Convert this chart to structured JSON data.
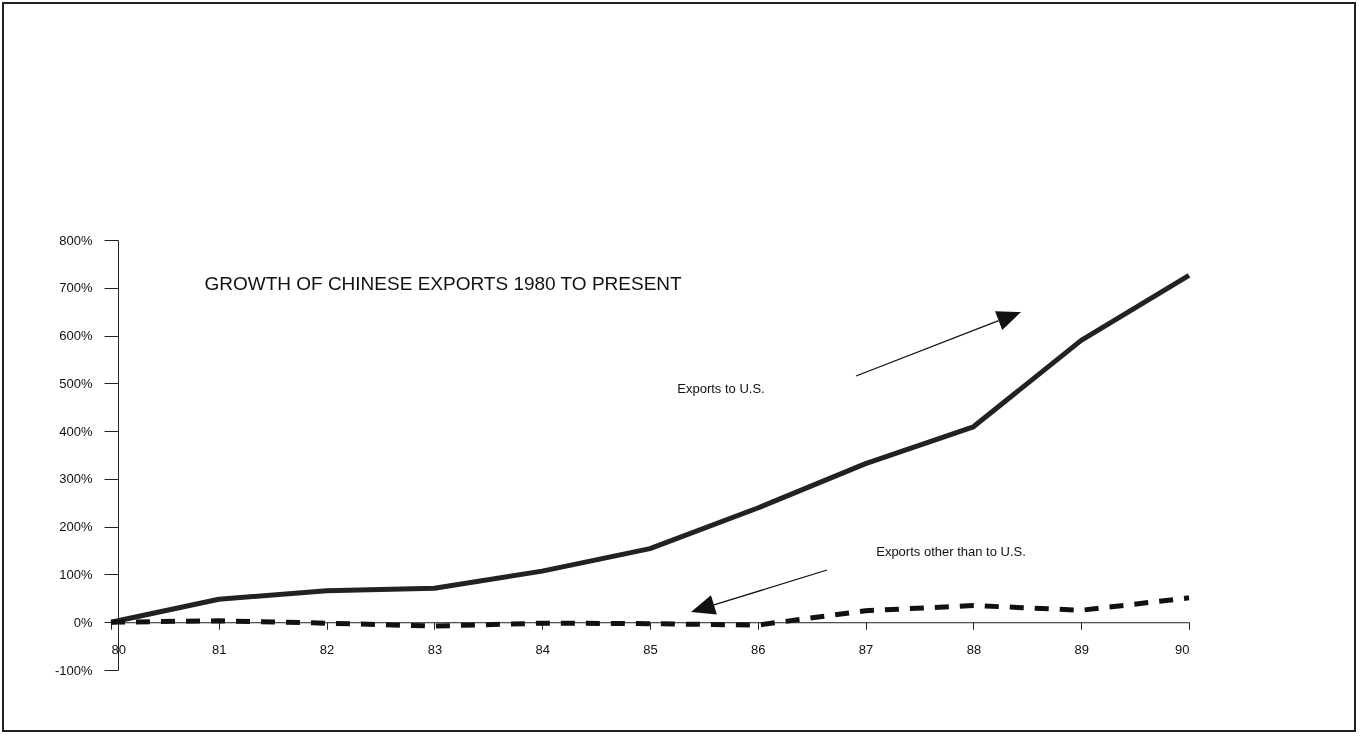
{
  "chart_data": {
    "type": "line",
    "title": "GROWTH OF CHINESE EXPORTS 1980 TO PRESENT",
    "x": [
      80,
      81,
      82,
      83,
      84,
      85,
      86,
      87,
      88,
      89,
      90
    ],
    "series": [
      {
        "color": "#222222",
        "line_style": "solid",
        "values": [
          0,
          48,
          66,
          71,
          107,
          154,
          239,
          332,
          409,
          590,
          726
        ]
      },
      {
        "color": "#111111",
        "line_style": "dashed",
        "values": [
          0,
          3,
          -2,
          -8,
          -2,
          -3,
          -6,
          24,
          35,
          25,
          51
        ]
      }
    ],
    "xlim": [
      80,
      90
    ],
    "xticks": [
      80,
      81,
      82,
      83,
      84,
      85,
      86,
      87,
      88,
      89,
      90
    ],
    "ylim": [
      -100,
      800
    ],
    "yticks": [
      {
        "value": -100,
        "label": "-100%"
      },
      {
        "value": 0,
        "label": "0%"
      },
      {
        "value": 100,
        "label": "100%"
      },
      {
        "value": 200,
        "label": "200%"
      },
      {
        "value": 300,
        "label": "300%"
      },
      {
        "value": 400,
        "label": "400%"
      },
      {
        "value": 500,
        "label": "500%"
      },
      {
        "value": 600,
        "label": "600%"
      },
      {
        "value": 700,
        "label": "700%"
      },
      {
        "value": 800,
        "label": "800%"
      }
    ],
    "annotations": [
      "Exports to U.S.",
      "Exports other than to U.S."
    ],
    "grid": false
  }
}
